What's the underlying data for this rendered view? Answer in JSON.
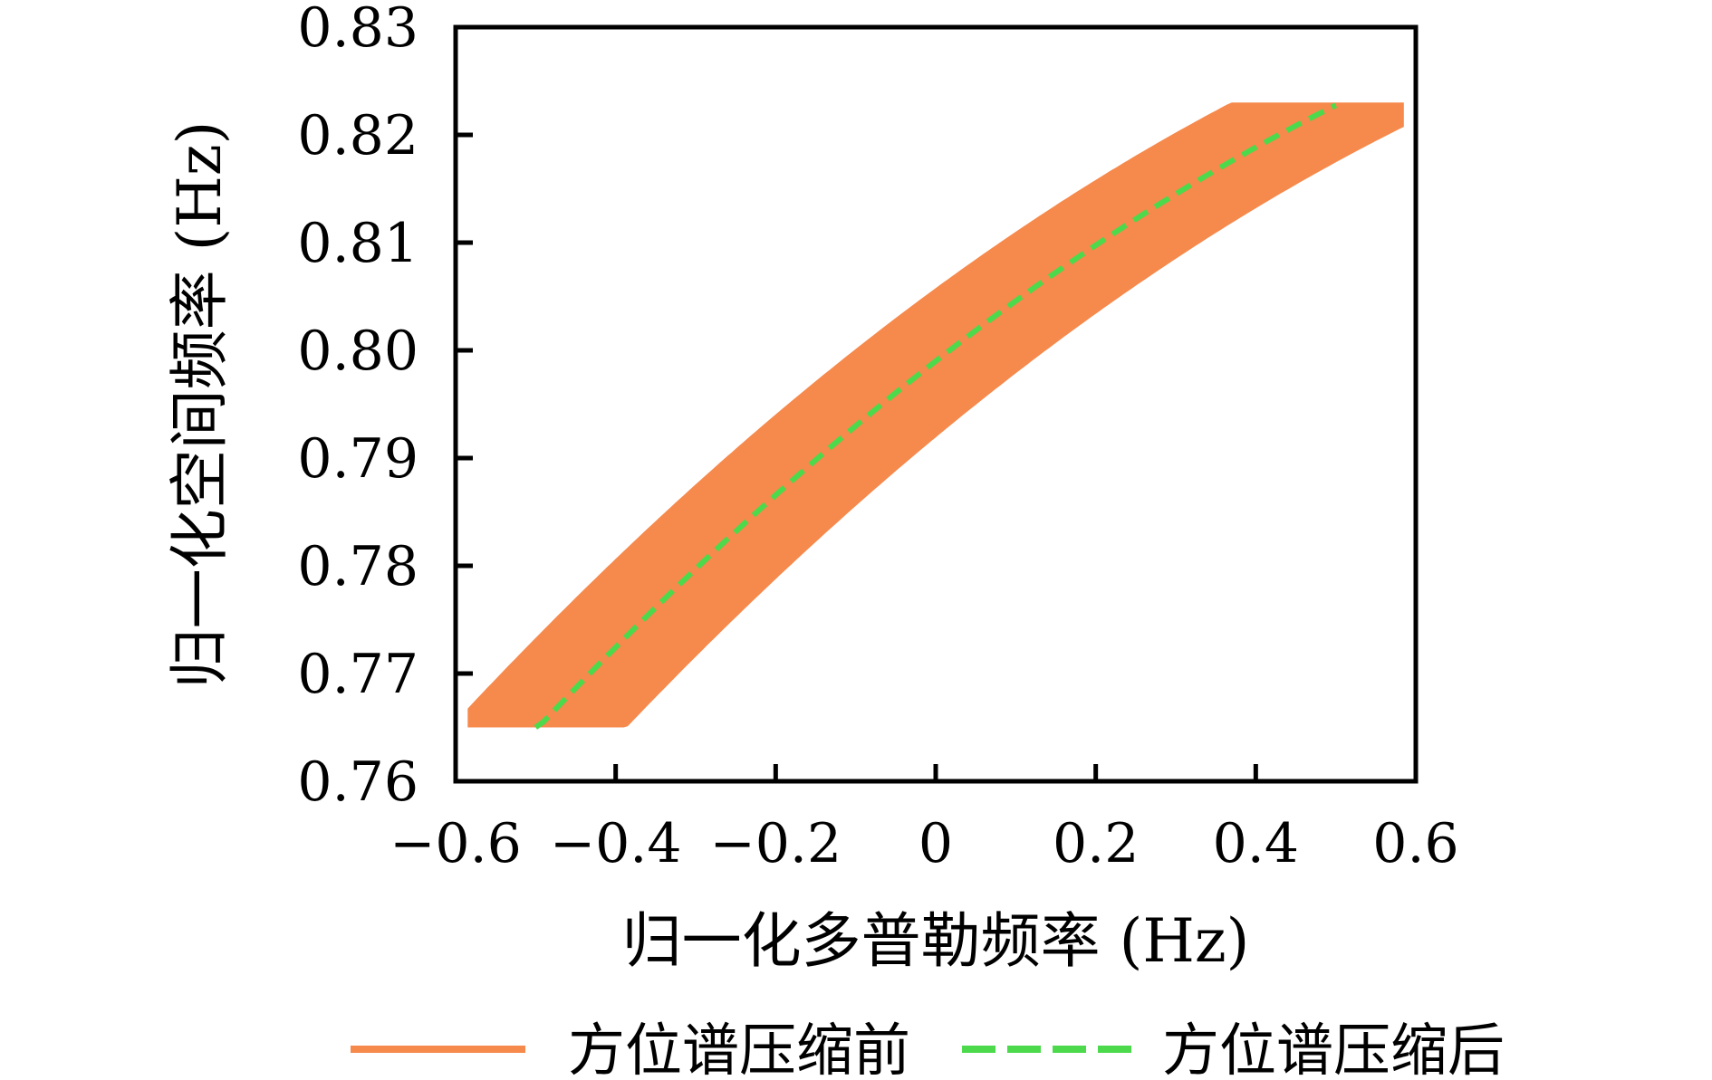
{
  "figure": {
    "kind": "scientific line/band plot",
    "background": "#ffffff",
    "frame_color": "#000000"
  },
  "chart_data": {
    "type": "area",
    "title": "",
    "xlabel": "归一化多普勒频率 (Hz)",
    "ylabel": "归一化空间频率 (Hz)",
    "xlim": [
      -0.6,
      0.6
    ],
    "ylim": [
      0.76,
      0.83
    ],
    "x_ticks": [
      -0.6,
      -0.4,
      -0.2,
      0,
      0.2,
      0.4,
      0.6
    ],
    "x_tick_labels": [
      "−0.6",
      "−0.4",
      "−0.2",
      "0",
      "0.2",
      "0.4",
      "0.6"
    ],
    "y_ticks": [
      0.76,
      0.77,
      0.78,
      0.79,
      0.8,
      0.81,
      0.82,
      0.83
    ],
    "y_tick_labels": [
      "0.76",
      "0.77",
      "0.78",
      "0.79",
      "0.80",
      "0.81",
      "0.82",
      "0.83"
    ],
    "grid": false,
    "legend_position": "below",
    "series": [
      {
        "name": "方位谱压缩前",
        "type": "band",
        "color": "#F6894C",
        "description": "orange filled band: the center curve spread by ±0.085 Hz in Doppler and ±0.002 Hz in spatial frequency, clipped to y∈[0.765,0.823]",
        "center_poly2": {
          "a": -0.021,
          "b": 0.058,
          "c": 0.799
        },
        "x_domain": [
          -0.5,
          0.5
        ],
        "x_half_width": 0.085,
        "y_half_width": 0.002,
        "y_clip": [
          0.765,
          0.823
        ],
        "center_points": [
          [
            -0.5,
            0.7648
          ],
          [
            -0.4,
            0.7724
          ],
          [
            -0.3,
            0.7797
          ],
          [
            -0.2,
            0.7866
          ],
          [
            -0.1,
            0.793
          ],
          [
            0,
            0.799
          ],
          [
            0.1,
            0.8046
          ],
          [
            0.2,
            0.8098
          ],
          [
            0.3,
            0.8145
          ],
          [
            0.4,
            0.8188
          ],
          [
            0.5,
            0.8228
          ]
        ]
      },
      {
        "name": "方位谱压缩后",
        "type": "dashed-line",
        "color": "#4CD94C",
        "description": "green dashed center line after azimuth spectrum compression",
        "points": [
          [
            -0.5,
            0.7648
          ],
          [
            -0.4,
            0.7724
          ],
          [
            -0.3,
            0.7797
          ],
          [
            -0.2,
            0.7866
          ],
          [
            -0.1,
            0.793
          ],
          [
            0,
            0.799
          ],
          [
            0.1,
            0.8046
          ],
          [
            0.2,
            0.8098
          ],
          [
            0.3,
            0.8145
          ],
          [
            0.4,
            0.8188
          ],
          [
            0.5,
            0.8228
          ]
        ]
      }
    ]
  }
}
